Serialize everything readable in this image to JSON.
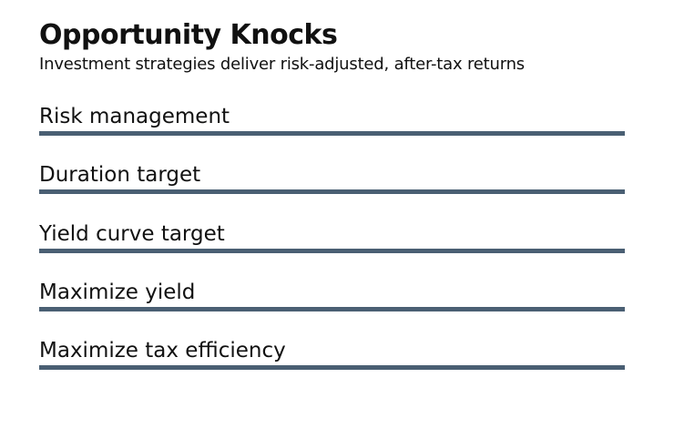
{
  "header": {
    "title": "Opportunity Knocks",
    "subtitle": "Investment strategies deliver risk-adjusted, after-tax returns"
  },
  "items": [
    {
      "label": "Risk management"
    },
    {
      "label": "Duration target"
    },
    {
      "label": "Yield curve target"
    },
    {
      "label": "Maximize yield"
    },
    {
      "label": "Maximize tax efficiency"
    }
  ],
  "colors": {
    "bar": "#4a5f73",
    "text": "#111111",
    "background": "#ffffff"
  }
}
